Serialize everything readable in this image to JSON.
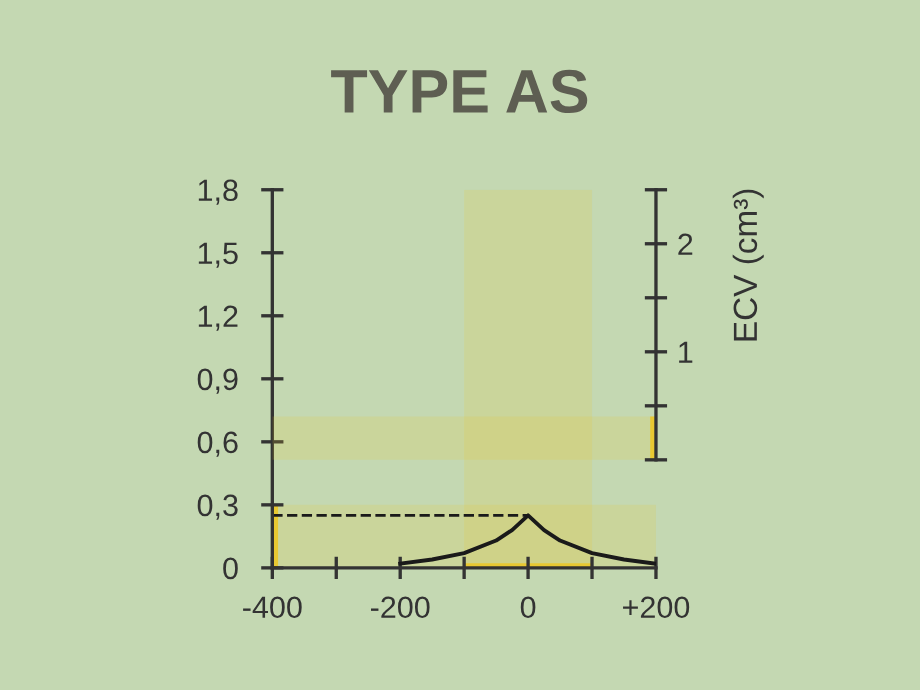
{
  "chart_data": {
    "type": "line",
    "title": "TYPE AS",
    "y2label": "ECV (cm³)",
    "x": [
      -200,
      -150,
      -100,
      -50,
      -25,
      0,
      25,
      50,
      100,
      150,
      200
    ],
    "series": [
      {
        "color": "#1a1a1a",
        "values": [
          0.02,
          0.04,
          0.07,
          0.13,
          0.18,
          0.25,
          0.18,
          0.13,
          0.07,
          0.04,
          0.02
        ]
      }
    ],
    "xlim": [
      -400,
      200
    ],
    "xticks": [
      -400,
      {
        "value": -300,
        "label": null
      },
      -200,
      {
        "value": -100,
        "label": null
      },
      0,
      {
        "value": 100,
        "label": null
      },
      {
        "value": 200,
        "label": "+200"
      }
    ],
    "ylim": [
      0,
      1.8
    ],
    "yticks": [
      0,
      {
        "value": 0.3,
        "label": "0,3"
      },
      {
        "value": 0.6,
        "label": "0,6"
      },
      {
        "value": 0.9,
        "label": "0,9"
      },
      {
        "value": 1.2,
        "label": "1,2"
      },
      {
        "value": 1.5,
        "label": "1,5"
      },
      {
        "value": 1.8,
        "label": "1,8"
      }
    ],
    "y2lim": [
      -1,
      2.5
    ],
    "y2ticks": [
      {
        "value": 0,
        "label": null
      },
      {
        "value": 0.5,
        "label": null
      },
      1,
      {
        "value": 1.5,
        "label": null
      },
      2,
      {
        "value": 2.5,
        "label": null
      }
    ],
    "ref_lines": [
      {
        "axis": "y",
        "value": 0.25,
        "color": "#1a1a1a",
        "line_style": "dashed"
      }
    ],
    "bands": [
      {
        "axis": "x",
        "from": -100,
        "to": 100,
        "color": "#e8c832"
      },
      {
        "axis": "y",
        "from": 0,
        "to": 0.3,
        "color": "#e8c832"
      },
      {
        "axis": "y2",
        "from": 0,
        "to": 0.4,
        "color": "#e8c832"
      }
    ],
    "grid": false,
    "legend": false,
    "marker": "none",
    "line_style": "solid"
  }
}
